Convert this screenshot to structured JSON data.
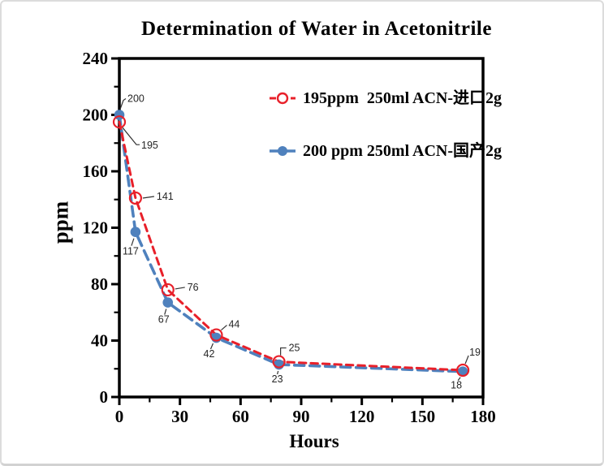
{
  "panel": {
    "background": "#ffffff",
    "border_color": "#dcdcdc"
  },
  "chart_data": {
    "type": "line",
    "title": "Determination of Water in Acetonitrile",
    "xlabel": "Hours",
    "ylabel": "ppm",
    "xlim": [
      0,
      180
    ],
    "ylim": [
      0,
      240
    ],
    "x_major_ticks": [
      0,
      30,
      60,
      90,
      120,
      150,
      180
    ],
    "x_minor_step": 15,
    "y_major_ticks": [
      0,
      40,
      80,
      120,
      160,
      200,
      240
    ],
    "y_minor_step": 20,
    "grid": false,
    "legend_position": "upper-center-inside",
    "axis_color": "#000000",
    "annotation_color": "#262626",
    "x": [
      0,
      8,
      24,
      48,
      79,
      170
    ],
    "series": [
      {
        "name": "195ppm  250ml ACN-进口2g",
        "color": "#e8202a",
        "marker": "open-circle",
        "line_style": "dashed",
        "values": [
          195,
          141,
          76,
          44,
          25,
          19
        ],
        "point_labels": [
          "195",
          "141",
          "76",
          "44",
          "25",
          "19"
        ]
      },
      {
        "name": "200 ppm 250ml ACN-国产2g",
        "color": "#4f81bd",
        "marker": "filled-circle",
        "line_style": "dashed",
        "values": [
          200,
          117,
          67,
          42,
          23,
          18
        ],
        "point_labels": [
          "200",
          "117",
          "67",
          "42",
          "23",
          "18"
        ]
      }
    ]
  }
}
